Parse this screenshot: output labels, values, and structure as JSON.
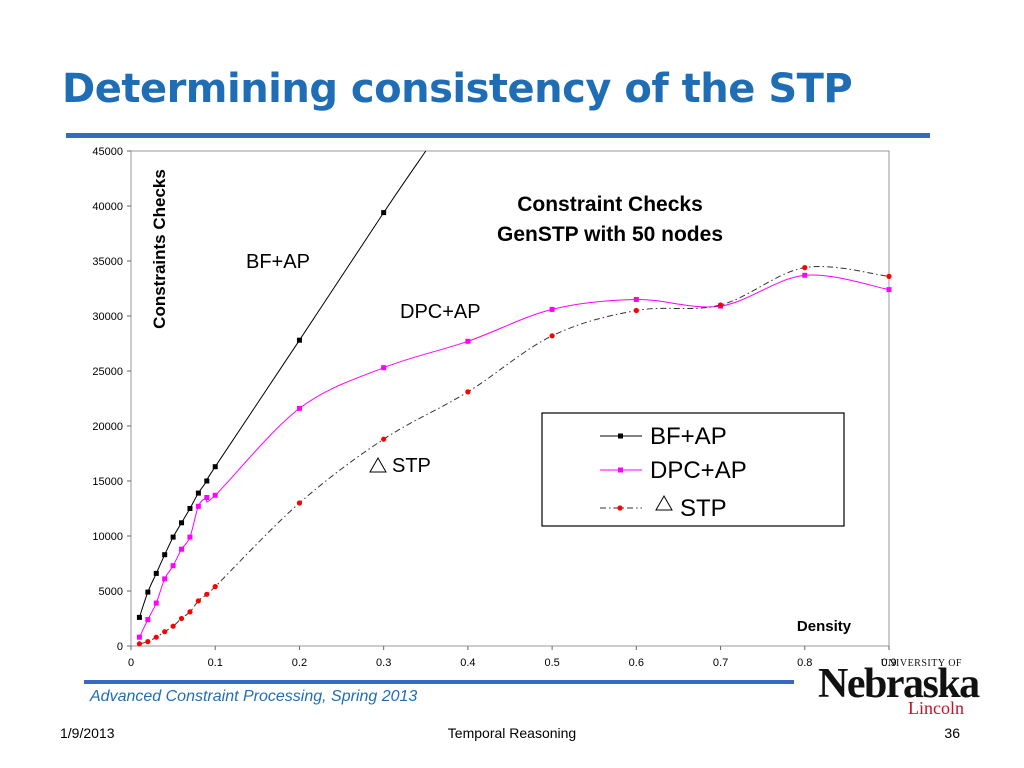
{
  "slide": {
    "title": "Determining consistency of the STP",
    "course_footer": "Advanced Constraint Processing, Spring 2013",
    "date": "1/9/2013",
    "topic": "Temporal Reasoning",
    "page": "36"
  },
  "logo": {
    "top_text": "UNIVERSITY OF",
    "main_text": "Nebraska",
    "sub_text": "Lincoln"
  },
  "colors": {
    "title": "#1f6eb5",
    "rule": "#3a66c4",
    "bf_ap": "#000000",
    "dpc_ap": "#ff00ff",
    "stp_marker": "#ff0000",
    "stp_line": "#333333"
  },
  "chart_data": {
    "type": "line",
    "title_line1": "Constraint Checks",
    "title_line2": "GenSTP with 50 nodes",
    "xlabel": "Density",
    "ylabel": "Constraints Checks",
    "xlim": [
      0,
      0.9
    ],
    "ylim": [
      0,
      45000
    ],
    "x_ticks": [
      "0",
      "0.1",
      "0.2",
      "0.3",
      "0.4",
      "0.5",
      "0.6",
      "0.7",
      "0.8",
      "0.9"
    ],
    "y_ticks": [
      "0",
      "5000",
      "10000",
      "15000",
      "20000",
      "25000",
      "30000",
      "35000",
      "40000",
      "45000"
    ],
    "grid": false,
    "legend_position": "right-middle",
    "series": [
      {
        "name": "BF+AP",
        "label": "BF+AP",
        "color": "#000000",
        "marker": "square",
        "style": "solid",
        "x": [
          0.01,
          0.02,
          0.03,
          0.04,
          0.05,
          0.06,
          0.07,
          0.08,
          0.09,
          0.1,
          0.2,
          0.3
        ],
        "y": [
          2600,
          4900,
          6600,
          8300,
          9900,
          11200,
          12500,
          13900,
          15000,
          16300,
          27800,
          39400
        ],
        "extend_to": [
          0.35,
          45000
        ]
      },
      {
        "name": "DPC+AP",
        "label": "DPC+AP",
        "color": "#ff00ff",
        "marker": "square",
        "style": "solid",
        "x": [
          0.01,
          0.02,
          0.03,
          0.04,
          0.05,
          0.06,
          0.07,
          0.08,
          0.09,
          0.1,
          0.2,
          0.3,
          0.4,
          0.5,
          0.6,
          0.7,
          0.8,
          0.9
        ],
        "y": [
          800,
          2400,
          3900,
          6100,
          7300,
          8800,
          9900,
          12700,
          13500,
          13700,
          21600,
          25300,
          27700,
          30600,
          31500,
          30900,
          33700,
          32400
        ]
      },
      {
        "name": "STP",
        "label": "STP",
        "color": "#ff0000",
        "marker": "circle",
        "style": "dash-dot",
        "x": [
          0.01,
          0.02,
          0.03,
          0.04,
          0.05,
          0.06,
          0.07,
          0.08,
          0.09,
          0.1,
          0.2,
          0.3,
          0.4,
          0.5,
          0.6,
          0.7,
          0.8,
          0.9
        ],
        "y": [
          200,
          400,
          800,
          1300,
          1800,
          2500,
          3100,
          4100,
          4700,
          5400,
          13000,
          18800,
          23100,
          28200,
          30500,
          31000,
          34400,
          33600
        ]
      }
    ]
  }
}
